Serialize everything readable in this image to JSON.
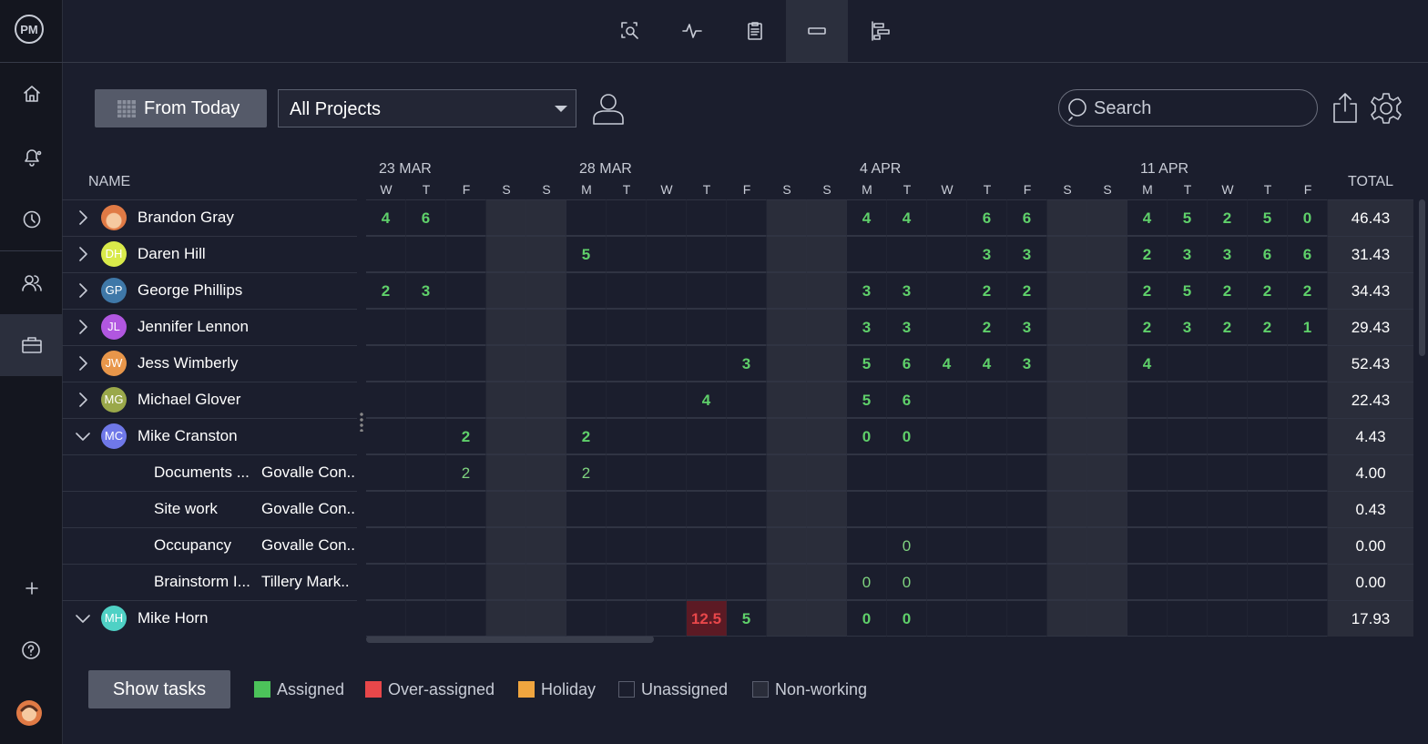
{
  "sidebar": {
    "logo": "PM"
  },
  "toolbar": {
    "date_button": "From Today",
    "project_select": "All Projects",
    "search_placeholder": "Search"
  },
  "table": {
    "name_header": "NAME",
    "total_header": "TOTAL",
    "dates": [
      "23 MAR",
      null,
      null,
      null,
      null,
      "28 MAR",
      null,
      null,
      null,
      null,
      null,
      null,
      "4 APR",
      null,
      null,
      null,
      null,
      null,
      null,
      "11 APR",
      null,
      null,
      null,
      null
    ],
    "days": [
      "W",
      "T",
      "F",
      "S",
      "S",
      "M",
      "T",
      "W",
      "T",
      "F",
      "S",
      "S",
      "M",
      "T",
      "W",
      "T",
      "F",
      "S",
      "S",
      "M",
      "T",
      "W",
      "T",
      "F"
    ],
    "rows": [
      {
        "name": "Brandon Gray",
        "avatar_color": "#e07a45",
        "expanded": false,
        "cells": [
          4,
          6,
          null,
          null,
          null,
          null,
          null,
          null,
          null,
          null,
          null,
          null,
          4,
          4,
          null,
          6,
          6,
          null,
          null,
          4,
          5,
          2,
          5,
          0
        ],
        "total": "46.43"
      },
      {
        "name": "Daren Hill",
        "initials": "DH",
        "avatar_color": "#d9ea4a",
        "expanded": false,
        "cells": [
          null,
          null,
          null,
          null,
          null,
          5,
          null,
          null,
          null,
          null,
          null,
          null,
          null,
          null,
          null,
          3,
          3,
          null,
          null,
          2,
          3,
          3,
          6,
          6
        ],
        "total": "31.43"
      },
      {
        "name": "George Phillips",
        "initials": "GP",
        "avatar_color": "#3f78a8",
        "expanded": false,
        "cells": [
          2,
          3,
          null,
          null,
          null,
          null,
          null,
          null,
          null,
          null,
          null,
          null,
          3,
          3,
          null,
          2,
          2,
          null,
          null,
          2,
          5,
          2,
          2,
          2
        ],
        "total": "34.43"
      },
      {
        "name": "Jennifer Lennon",
        "initials": "JL",
        "avatar_color": "#b157e0",
        "expanded": false,
        "cells": [
          null,
          null,
          null,
          null,
          null,
          null,
          null,
          null,
          null,
          null,
          null,
          null,
          3,
          3,
          null,
          2,
          3,
          null,
          null,
          2,
          3,
          2,
          2,
          1
        ],
        "total": "29.43"
      },
      {
        "name": "Jess Wimberly",
        "initials": "JW",
        "avatar_color": "#e8964a",
        "expanded": false,
        "cells": [
          null,
          null,
          null,
          null,
          null,
          null,
          null,
          null,
          null,
          3,
          null,
          null,
          5,
          6,
          4,
          4,
          3,
          null,
          null,
          4,
          null,
          null,
          null,
          null
        ],
        "total": "52.43"
      },
      {
        "name": "Michael Glover",
        "initials": "MG",
        "avatar_color": "#9aa84a",
        "expanded": false,
        "cells": [
          null,
          null,
          null,
          null,
          null,
          null,
          null,
          null,
          4,
          null,
          null,
          null,
          5,
          6,
          null,
          null,
          null,
          null,
          null,
          null,
          null,
          null,
          null,
          null
        ],
        "total": "22.43"
      },
      {
        "name": "Mike Cranston",
        "initials": "MC",
        "avatar_color": "#6f78e8",
        "expanded": true,
        "cells": [
          null,
          null,
          2,
          null,
          null,
          2,
          null,
          null,
          null,
          null,
          null,
          null,
          0,
          0,
          null,
          null,
          null,
          null,
          null,
          null,
          null,
          null,
          null,
          null
        ],
        "total": "4.43"
      },
      {
        "task": "Documents ...",
        "project": "Govalle Con..",
        "cells": [
          null,
          null,
          2,
          null,
          null,
          2,
          null,
          null,
          null,
          null,
          null,
          null,
          null,
          null,
          null,
          null,
          null,
          null,
          null,
          null,
          null,
          null,
          null,
          null
        ],
        "total": "4.00"
      },
      {
        "task": "Site work",
        "project": "Govalle Con..",
        "cells": [
          null,
          null,
          null,
          null,
          null,
          null,
          null,
          null,
          null,
          null,
          null,
          null,
          null,
          null,
          null,
          null,
          null,
          null,
          null,
          null,
          null,
          null,
          null,
          null
        ],
        "total": "0.43"
      },
      {
        "task": "Occupancy",
        "project": "Govalle Con..",
        "cells": [
          null,
          null,
          null,
          null,
          null,
          null,
          null,
          null,
          null,
          null,
          null,
          null,
          null,
          0,
          null,
          null,
          null,
          null,
          null,
          null,
          null,
          null,
          null,
          null
        ],
        "total": "0.00"
      },
      {
        "task": "Brainstorm I...",
        "project": "Tillery Mark..",
        "cells": [
          null,
          null,
          null,
          null,
          null,
          null,
          null,
          null,
          null,
          null,
          null,
          null,
          0,
          0,
          null,
          null,
          null,
          null,
          null,
          null,
          null,
          null,
          null,
          null
        ],
        "total": "0.00"
      },
      {
        "name": "Mike Horn",
        "initials": "MH",
        "avatar_color": "#4fd1c5",
        "expanded": true,
        "cells": [
          null,
          null,
          null,
          null,
          null,
          null,
          null,
          null,
          12.5,
          5,
          null,
          null,
          0,
          0,
          null,
          null,
          null,
          null,
          null,
          null,
          null,
          null,
          null,
          null
        ],
        "total": "17.93"
      }
    ],
    "over_assigned": [
      [
        11,
        8
      ]
    ]
  },
  "footer": {
    "show_tasks": "Show tasks"
  },
  "legend": [
    {
      "label": "Assigned",
      "color": "#4cc35a"
    },
    {
      "label": "Over-assigned",
      "color": "#e8474a"
    },
    {
      "label": "Holiday",
      "color": "#f0a53f"
    },
    {
      "label": "Unassigned",
      "color": "#1b1e2d"
    },
    {
      "label": "Non-working",
      "color": "#2a2d3a"
    }
  ]
}
